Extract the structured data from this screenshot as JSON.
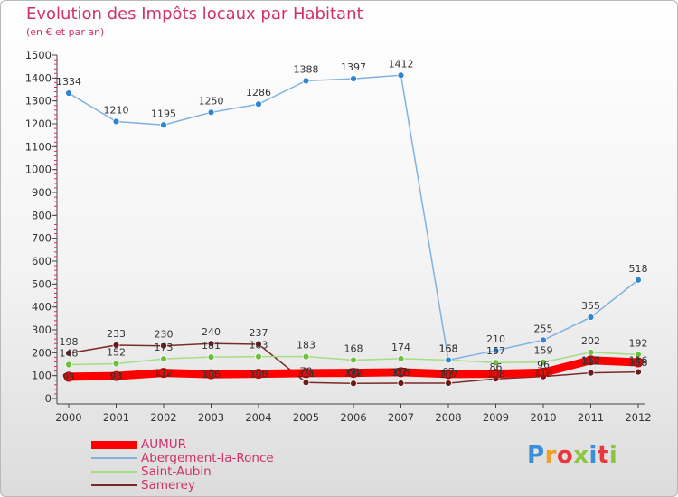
{
  "title": "Evolution des Impôts locaux par Habitant",
  "subtitle": "(en € et par an)",
  "logo_text": "Proxiti",
  "logo_colors": [
    "#3a8fd6",
    "#f0a022",
    "#e8383b",
    "#8cc63f",
    "#3a8fd6",
    "#e8383b",
    "#8cc63f"
  ],
  "colors": {
    "title": "#d0316b",
    "legend_text": "#d0316b",
    "axis": "#444444",
    "grid_tick": "#d0316b"
  },
  "chart_data": {
    "type": "line",
    "x": [
      "2000",
      "2001",
      "2002",
      "2003",
      "2004",
      "2005",
      "2006",
      "2007",
      "2008",
      "2009",
      "2010",
      "2011",
      "2012"
    ],
    "ylim": [
      0,
      1500
    ],
    "yticks": [
      0,
      100,
      200,
      300,
      400,
      500,
      600,
      700,
      800,
      900,
      1000,
      1100,
      1200,
      1300,
      1400,
      1500
    ],
    "grid": false,
    "legend_position": "bottom-left",
    "series": [
      {
        "name": "AUMUR",
        "color": "#ff0000",
        "marker": "#e01010",
        "values": [
          95,
          98,
          112,
          106,
          108,
          111,
          112,
          115,
          107,
          108,
          113,
          167,
          158
        ]
      },
      {
        "name": "Abergement-la-Ronce",
        "color": "#7fb2e0",
        "marker": "#2f86d0",
        "values": [
          1334,
          1210,
          1195,
          1250,
          1286,
          1388,
          1397,
          1412,
          168,
          210,
          255,
          355,
          518
        ]
      },
      {
        "name": "Saint-Aubin",
        "color": "#a6dc82",
        "marker": "#6cc13a",
        "values": [
          148,
          152,
          173,
          181,
          183,
          183,
          168,
          174,
          168,
          157,
          159,
          202,
          192
        ]
      },
      {
        "name": "Samerey",
        "color": "#7a2a2a",
        "marker": "#6a1a1a",
        "values": [
          198,
          233,
          230,
          240,
          237,
          70,
          66,
          67,
          67,
          86,
          96,
          112,
          116
        ]
      }
    ]
  }
}
